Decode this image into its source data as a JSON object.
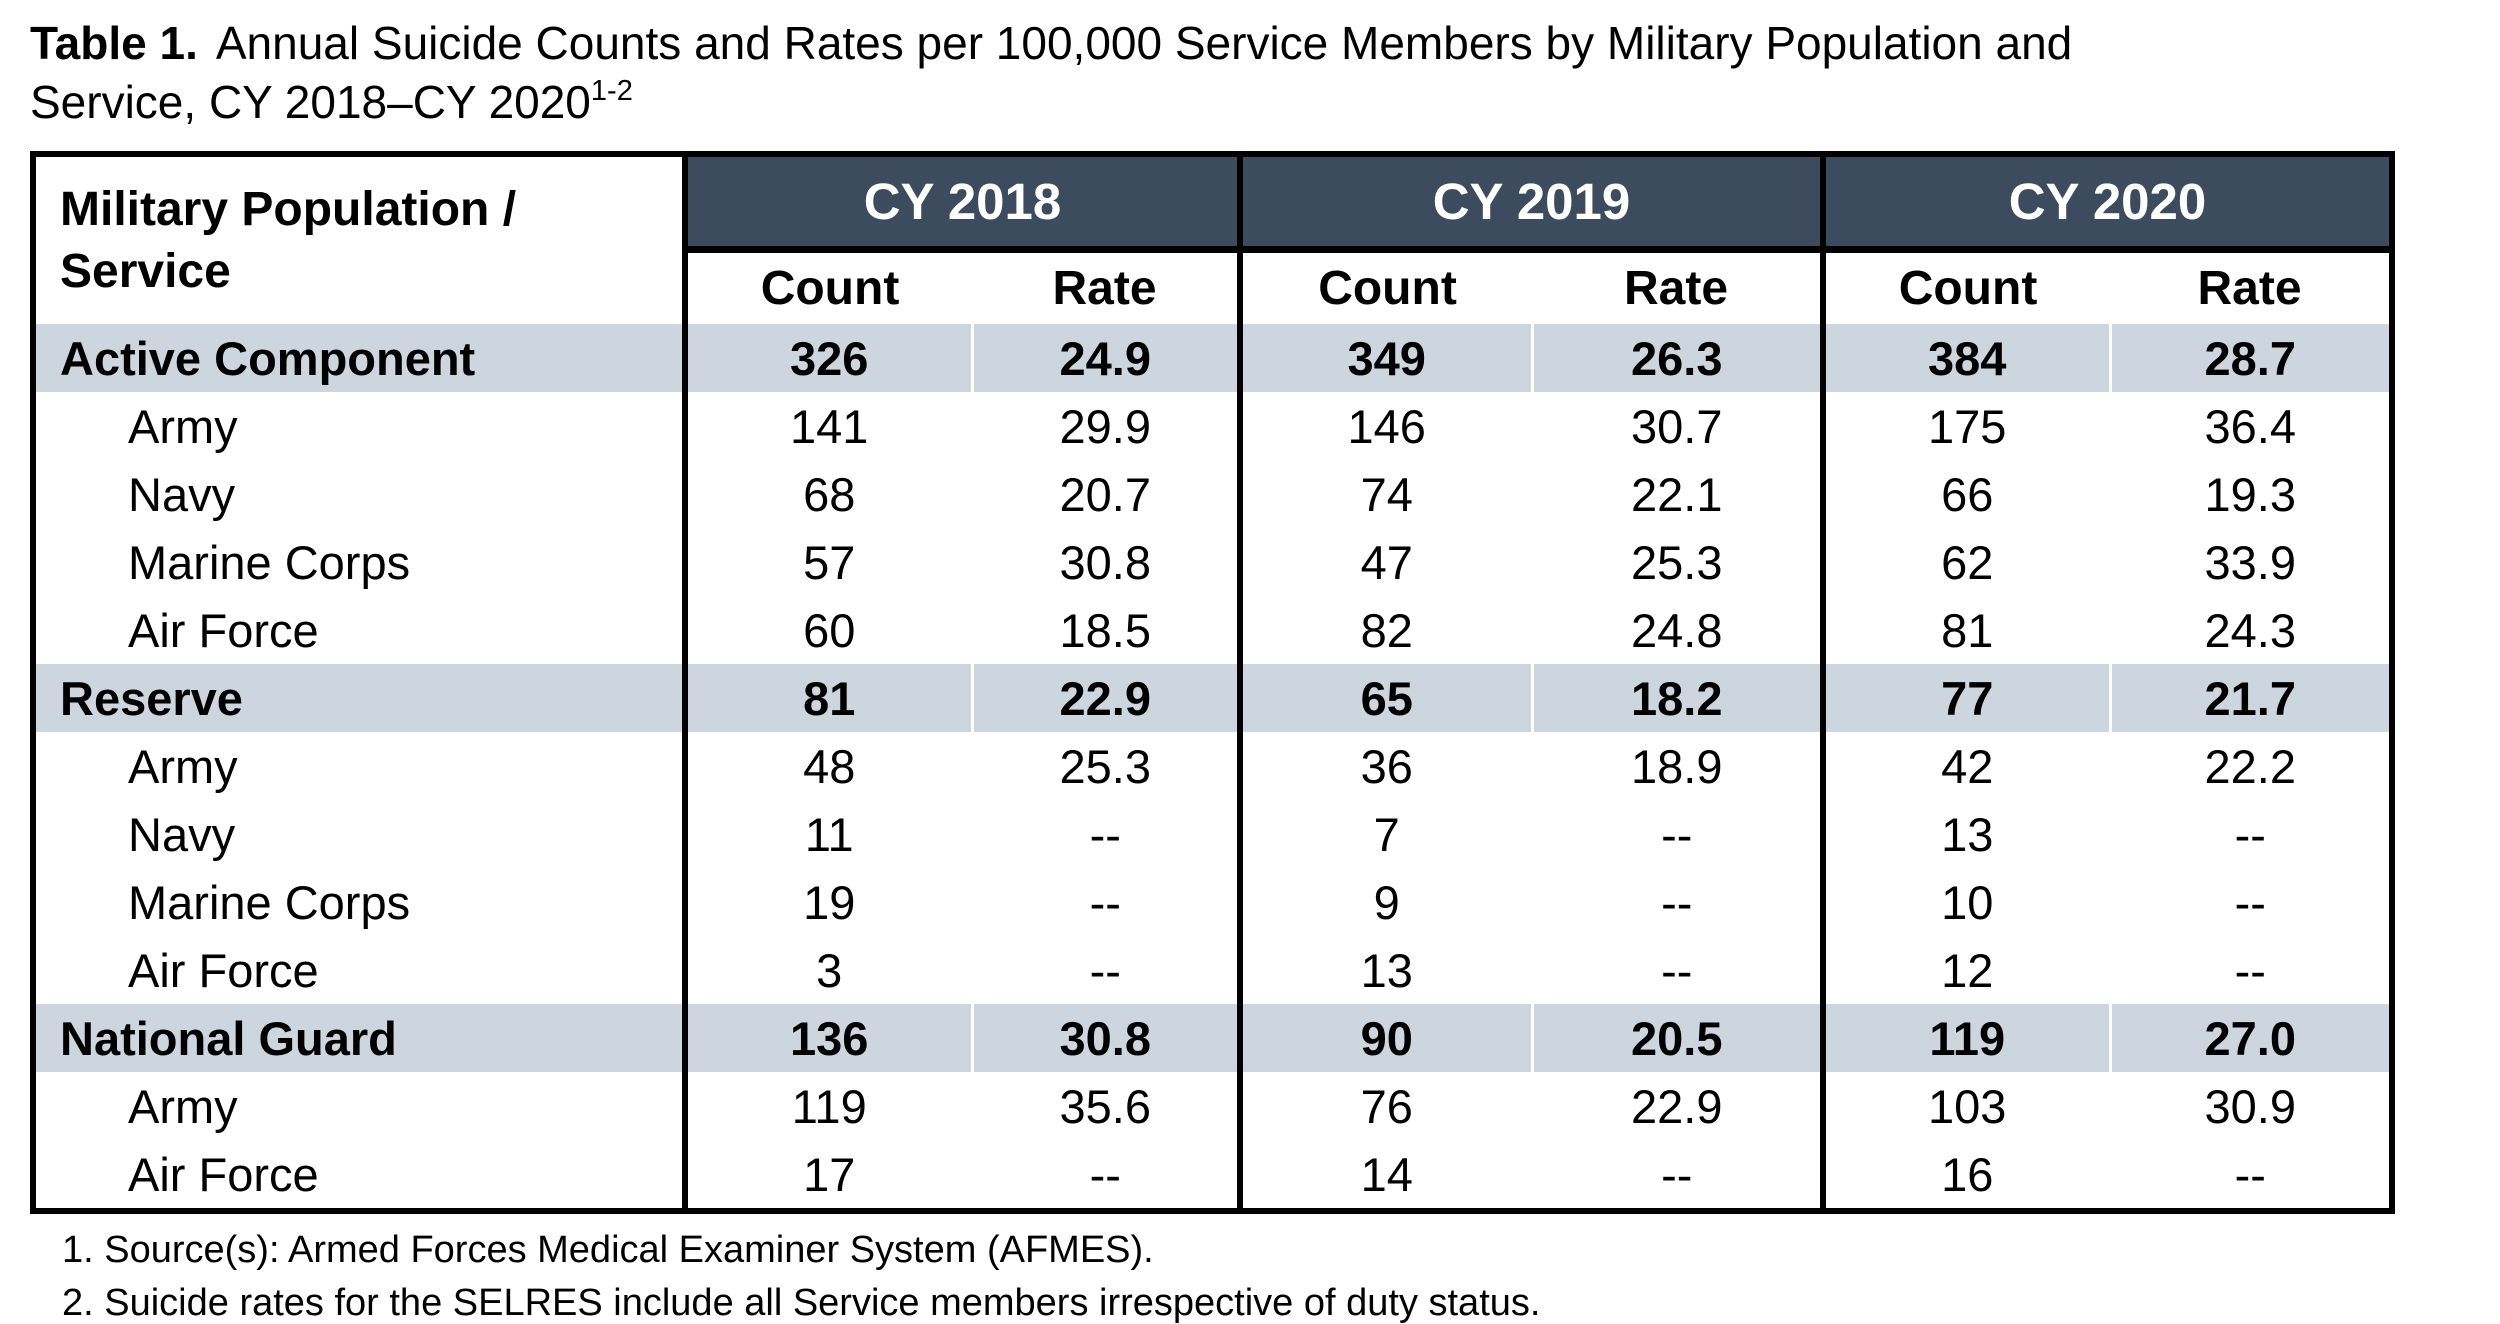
{
  "title": {
    "label": "Table 1.",
    "line1": "Annual Suicide Counts and Rates per 100,000 Service Members by Military Population and",
    "line2": "Service, CY 2018–CY 2020",
    "superscript": "1-2"
  },
  "colors": {
    "header_bg": "#3C4B5E",
    "group_row_bg": "#CDD5DF"
  },
  "table": {
    "row_header_line1": "Military Population /",
    "row_header_line2": "Service",
    "year_groups": [
      "CY 2018",
      "CY 2019",
      "CY 2020"
    ],
    "subheaders": [
      "Count",
      "Rate"
    ],
    "rows": [
      {
        "label": "Active Component",
        "type": "group",
        "values": [
          "326",
          "24.9",
          "349",
          "26.3",
          "384",
          "28.7"
        ]
      },
      {
        "label": "Army",
        "type": "sub",
        "values": [
          "141",
          "29.9",
          "146",
          "30.7",
          "175",
          "36.4"
        ]
      },
      {
        "label": "Navy",
        "type": "sub",
        "values": [
          "68",
          "20.7",
          "74",
          "22.1",
          "66",
          "19.3"
        ]
      },
      {
        "label": "Marine Corps",
        "type": "sub",
        "values": [
          "57",
          "30.8",
          "47",
          "25.3",
          "62",
          "33.9"
        ]
      },
      {
        "label": "Air Force",
        "type": "sub",
        "values": [
          "60",
          "18.5",
          "82",
          "24.8",
          "81",
          "24.3"
        ]
      },
      {
        "label": "Reserve",
        "type": "group",
        "values": [
          "81",
          "22.9",
          "65",
          "18.2",
          "77",
          "21.7"
        ]
      },
      {
        "label": "Army",
        "type": "sub",
        "values": [
          "48",
          "25.3",
          "36",
          "18.9",
          "42",
          "22.2"
        ]
      },
      {
        "label": "Navy",
        "type": "sub",
        "values": [
          "11",
          "--",
          "7",
          "--",
          "13",
          "--"
        ]
      },
      {
        "label": "Marine Corps",
        "type": "sub",
        "values": [
          "19",
          "--",
          "9",
          "--",
          "10",
          "--"
        ]
      },
      {
        "label": "Air Force",
        "type": "sub",
        "values": [
          "3",
          "--",
          "13",
          "--",
          "12",
          "--"
        ]
      },
      {
        "label": "National Guard",
        "type": "group",
        "values": [
          "136",
          "30.8",
          "90",
          "20.5",
          "119",
          "27.0"
        ]
      },
      {
        "label": "Army",
        "type": "sub",
        "values": [
          "119",
          "35.6",
          "76",
          "22.9",
          "103",
          "30.9"
        ]
      },
      {
        "label": "Air Force",
        "type": "sub",
        "values": [
          "17",
          "--",
          "14",
          "--",
          "16",
          "--"
        ]
      }
    ]
  },
  "footnotes": [
    "1. Source(s):  Armed Forces Medical Examiner System (AFMES).",
    "2. Suicide rates for the SELRES include all Service members irrespective of duty status."
  ]
}
